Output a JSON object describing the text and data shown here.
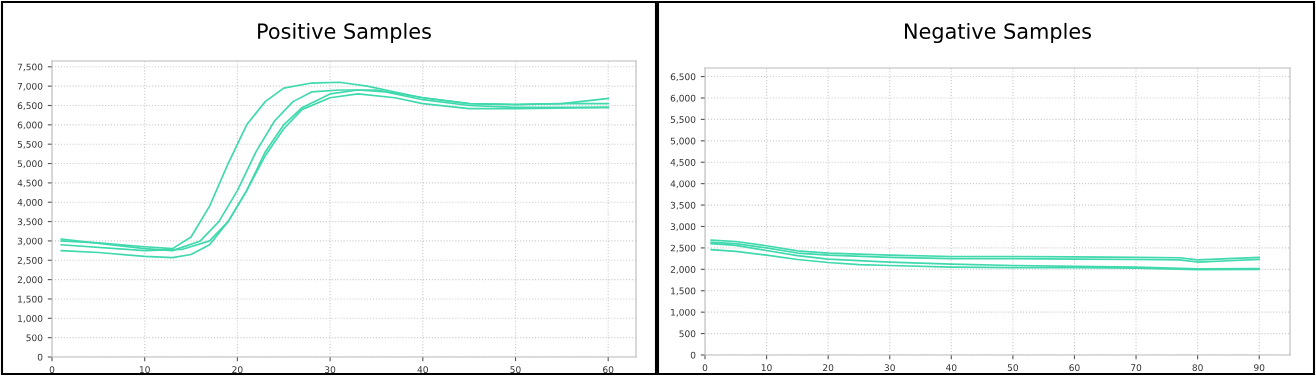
{
  "chart_data": [
    {
      "type": "line",
      "title": "Positive Samples",
      "xlim": [
        0,
        63
      ],
      "xticks": [
        0,
        10,
        20,
        30,
        40,
        50,
        60
      ],
      "ylim": [
        0,
        7650
      ],
      "yticks": [
        0,
        500,
        {
          "value": 1000,
          "label": "1,000"
        },
        {
          "value": 1500,
          "label": "1,500"
        },
        {
          "value": 2000,
          "label": "2,000"
        },
        {
          "value": 2500,
          "label": "2,500"
        },
        {
          "value": 3000,
          "label": "3,000"
        },
        {
          "value": 3500,
          "label": "3,500"
        },
        {
          "value": 4000,
          "label": "4,000"
        },
        {
          "value": 4500,
          "label": "4,500"
        },
        {
          "value": 5000,
          "label": "5,000"
        },
        {
          "value": 5500,
          "label": "5,500"
        },
        {
          "value": 6000,
          "label": "6,000"
        },
        {
          "value": 6500,
          "label": "6,500"
        },
        {
          "value": 7000,
          "label": "7,000"
        },
        {
          "value": 7500,
          "label": "7,500"
        }
      ],
      "grid": true,
      "legend": false,
      "marker": "none",
      "line_style": "solid",
      "series": [
        {
          "color": "#3fd9ad",
          "x": [
            1,
            5,
            10,
            13,
            15,
            17,
            19,
            21,
            23,
            25,
            28,
            31,
            34,
            37,
            40,
            45,
            50,
            55,
            60
          ],
          "values": [
            3000,
            2950,
            2850,
            2800,
            3100,
            3900,
            5000,
            6000,
            6600,
            6950,
            7080,
            7100,
            7000,
            6850,
            6700,
            6550,
            6520,
            6550,
            6680
          ]
        },
        {
          "color": "#3fd9ad",
          "x": [
            1,
            10,
            13,
            16,
            18,
            20,
            22,
            24,
            26,
            28,
            31,
            35,
            40,
            45,
            50,
            55,
            60
          ],
          "values": [
            3050,
            2800,
            2750,
            3000,
            3500,
            4300,
            5300,
            6100,
            6600,
            6850,
            6900,
            6900,
            6700,
            6550,
            6530,
            6550,
            6550
          ]
        },
        {
          "color": "#3fd9ad",
          "x": [
            1,
            10,
            14,
            17,
            19,
            21,
            23,
            25,
            27,
            30,
            33,
            36,
            40,
            45,
            50,
            60
          ],
          "values": [
            2900,
            2750,
            2780,
            3000,
            3500,
            4300,
            5300,
            6000,
            6450,
            6800,
            6900,
            6850,
            6650,
            6500,
            6450,
            6450
          ]
        },
        {
          "color": "#3fd9ad",
          "x": [
            1,
            5,
            10,
            13,
            15,
            17,
            19,
            21,
            23,
            25,
            27,
            30,
            33,
            37,
            40,
            45,
            50,
            60
          ],
          "values": [
            2750,
            2700,
            2600,
            2570,
            2650,
            2900,
            3500,
            4300,
            5200,
            5900,
            6400,
            6700,
            6800,
            6700,
            6550,
            6420,
            6420,
            6450
          ]
        }
      ]
    },
    {
      "type": "line",
      "title": "Negative Samples",
      "xlim": [
        0,
        95
      ],
      "xticks": [
        0,
        10,
        20,
        30,
        40,
        50,
        60,
        70,
        80,
        90
      ],
      "ylim": [
        0,
        6700
      ],
      "yticks": [
        0,
        500,
        {
          "value": 1000,
          "label": "1,000"
        },
        {
          "value": 1500,
          "label": "1,500"
        },
        {
          "value": 2000,
          "label": "2,000"
        },
        {
          "value": 2500,
          "label": "2,500"
        },
        {
          "value": 3000,
          "label": "3,000"
        },
        {
          "value": 3500,
          "label": "3,500"
        },
        {
          "value": 4000,
          "label": "4,000"
        },
        {
          "value": 4500,
          "label": "4,500"
        },
        {
          "value": 5000,
          "label": "5,000"
        },
        {
          "value": 5500,
          "label": "5,500"
        },
        {
          "value": 6000,
          "label": "6,000"
        },
        {
          "value": 6500,
          "label": "6,500"
        }
      ],
      "grid": true,
      "legend": false,
      "marker": "none",
      "line_style": "solid",
      "series": [
        {
          "color": "#3fd9ad",
          "x": [
            1,
            5,
            10,
            15,
            20,
            30,
            40,
            50,
            60,
            70,
            77,
            80,
            85,
            90
          ],
          "values": [
            2680,
            2650,
            2550,
            2430,
            2380,
            2330,
            2300,
            2300,
            2290,
            2280,
            2270,
            2220,
            2250,
            2280
          ]
        },
        {
          "color": "#3fd9ad",
          "x": [
            1,
            5,
            10,
            15,
            20,
            30,
            40,
            50,
            60,
            70,
            77,
            80,
            85,
            90
          ],
          "values": [
            2630,
            2600,
            2500,
            2380,
            2330,
            2280,
            2250,
            2250,
            2240,
            2230,
            2220,
            2170,
            2200,
            2230
          ]
        },
        {
          "color": "#3fd9ad",
          "x": [
            1,
            5,
            10,
            15,
            20,
            30,
            40,
            50,
            60,
            70,
            80,
            90
          ],
          "values": [
            2600,
            2560,
            2440,
            2320,
            2240,
            2170,
            2120,
            2090,
            2070,
            2050,
            2010,
            2020
          ]
        },
        {
          "color": "#3fd9ad",
          "x": [
            1,
            5,
            10,
            15,
            20,
            25,
            30,
            40,
            50,
            60,
            70,
            80,
            90
          ],
          "values": [
            2460,
            2420,
            2330,
            2230,
            2160,
            2110,
            2090,
            2050,
            2040,
            2040,
            2030,
            1990,
            2000
          ]
        }
      ]
    }
  ]
}
